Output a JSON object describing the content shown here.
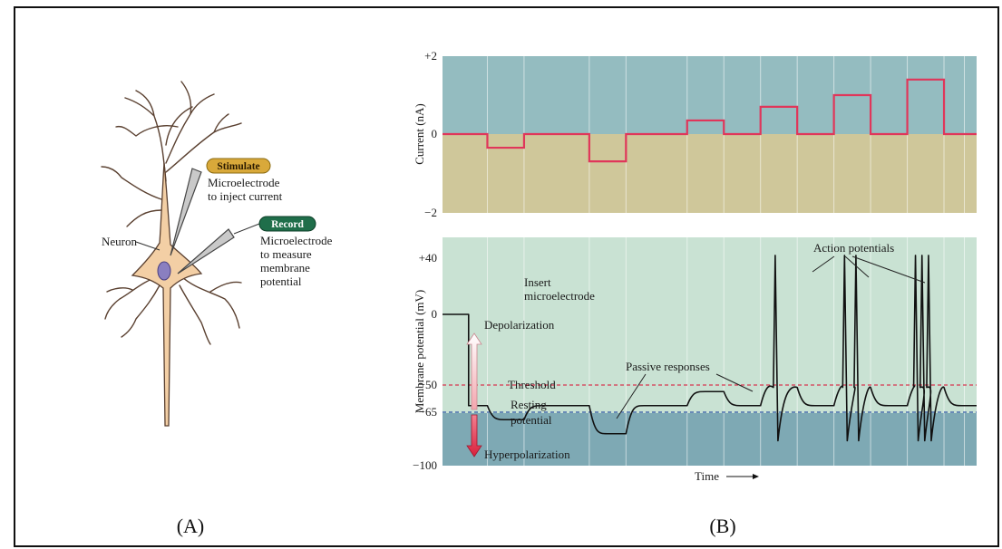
{
  "panel_a": {
    "label": "(A)",
    "neuron_label": "Neuron",
    "stimulate": {
      "badge": "Stimulate",
      "badge_color": "#d9a93a",
      "lines": [
        "Microelectrode",
        "to inject current"
      ]
    },
    "record": {
      "badge": "Record",
      "badge_color": "#1f6e4a",
      "lines": [
        "Microelectrode",
        "to measure",
        "membrane",
        "potential"
      ]
    },
    "neuron_fill": "#f3cfa5",
    "neuron_stroke": "#5a4030",
    "nucleus_color": "#8a7fc0"
  },
  "panel_b": {
    "label": "(B)",
    "current": {
      "ylabel": "Current (nA)",
      "ticks": [
        "+2",
        "0",
        "−2"
      ],
      "yrange": [
        -2,
        2
      ],
      "steps": [
        {
          "t0": 0.0,
          "t1": 0.55,
          "v": 0
        },
        {
          "t0": 0.55,
          "t1": 1.0,
          "v": -0.35
        },
        {
          "t0": 1.0,
          "t1": 1.8,
          "v": 0
        },
        {
          "t0": 1.8,
          "t1": 2.25,
          "v": -0.7
        },
        {
          "t0": 2.25,
          "t1": 3.0,
          "v": 0
        },
        {
          "t0": 3.0,
          "t1": 3.45,
          "v": 0.35
        },
        {
          "t0": 3.45,
          "t1": 3.9,
          "v": 0
        },
        {
          "t0": 3.9,
          "t1": 4.35,
          "v": 0.7
        },
        {
          "t0": 4.35,
          "t1": 4.8,
          "v": 0
        },
        {
          "t0": 4.8,
          "t1": 5.25,
          "v": 1.0
        },
        {
          "t0": 5.25,
          "t1": 5.7,
          "v": 0
        },
        {
          "t0": 5.7,
          "t1": 6.15,
          "v": 1.4
        },
        {
          "t0": 6.15,
          "t1": 6.55,
          "v": 0
        }
      ],
      "line_color": "#e0365a",
      "bg_top": "#94bcc0",
      "bg_bottom": "#cfc79a"
    },
    "voltage": {
      "ylabel": "Membrane potential (mV)",
      "ticks": [
        "+40",
        "0",
        "−50",
        "−65",
        "−100"
      ],
      "threshold_label": "Threshold",
      "resting_label": [
        "Resting",
        "potential"
      ],
      "insert_label": [
        "Insert",
        "microelectrode"
      ],
      "passive_label": "Passive responses",
      "action_label": "Action potentials",
      "depol_label": "Depolarization",
      "hyper_label": "Hyperpolarization",
      "xlabel": "Time",
      "bg_top": "#c9e2d3",
      "bg_bottom": "#7ea9b4",
      "threshold_color": "#d8344e",
      "resting_color": "#2f55a5"
    }
  }
}
